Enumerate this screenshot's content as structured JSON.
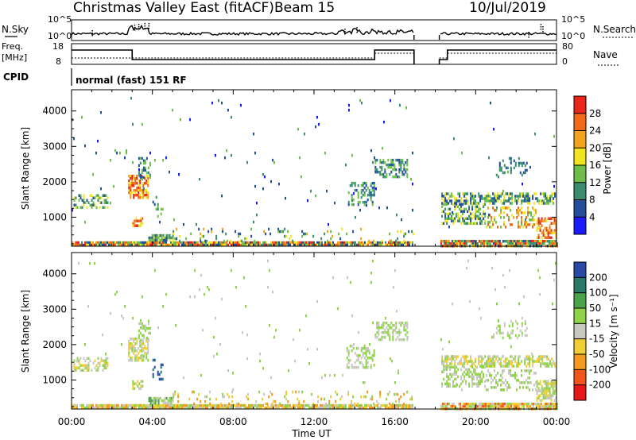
{
  "header": {
    "station": "Christmas Valley East (fitACF)",
    "beam": "Beam 15",
    "date": "10/Jul/2019"
  },
  "strip_labels": {
    "nsky": "N.Sky",
    "nsky_ticks": [
      "10^5",
      "10^0"
    ],
    "nsearch": "N.Search",
    "nsearch_ticks": [
      "10^5",
      "10^0"
    ],
    "freq_line1": "Freq.",
    "freq_line2": "[MHz]",
    "freq_ticks": [
      "18",
      "8"
    ],
    "nave": "Nave",
    "nave_ticks": [
      "80",
      "0"
    ],
    "cpid": "CPID",
    "cpid_text": "normal (fast) 151 RF"
  },
  "colors": {
    "power": [
      "#1a1aff",
      "#234e9a",
      "#3c8c6e",
      "#6dbf4a",
      "#f2e51f",
      "#f5a21e",
      "#f26a17",
      "#e8261a"
    ],
    "velocity": [
      "#e8181a",
      "#f2561a",
      "#f59a1e",
      "#f2ce36",
      "#c8c8c0",
      "#8fd447",
      "#4aa54a",
      "#2a7a6a",
      "#2a4aa8"
    ]
  },
  "chart_data": [
    {
      "type": "heatmap",
      "name": "power",
      "ylabel": "Slant Range [km]",
      "xlabel": "Time UT",
      "x_ticks": [
        "00:00",
        "04:00",
        "08:00",
        "12:00",
        "16:00",
        "20:00",
        "00:00"
      ],
      "y_ticks": [
        "1000",
        "2000",
        "3000",
        "4000"
      ],
      "ylim": [
        180,
        4600
      ],
      "xlim_hours": [
        0,
        24
      ],
      "colorbar_label": "Power [dB]",
      "colorbar_ticks": [
        "4",
        "8",
        "12",
        "16",
        "20",
        "24",
        "28"
      ],
      "data_gaps_hours": [
        [
          16.95,
          18.2
        ]
      ]
    },
    {
      "type": "heatmap",
      "name": "velocity",
      "ylabel": "Slant Range [km]",
      "xlabel": "Time UT",
      "x_ticks": [
        "00:00",
        "04:00",
        "08:00",
        "12:00",
        "16:00",
        "20:00",
        "00:00"
      ],
      "y_ticks": [
        "1000",
        "2000",
        "3000",
        "4000"
      ],
      "ylim": [
        180,
        4600
      ],
      "xlim_hours": [
        0,
        24
      ],
      "colorbar_label": "Velocity [m s⁻¹]",
      "colorbar_ticks": [
        "-200",
        "-100",
        "-50",
        "-15",
        "15",
        "50",
        "100",
        "200"
      ],
      "data_gaps_hours": [
        [
          16.95,
          18.2
        ]
      ]
    }
  ]
}
